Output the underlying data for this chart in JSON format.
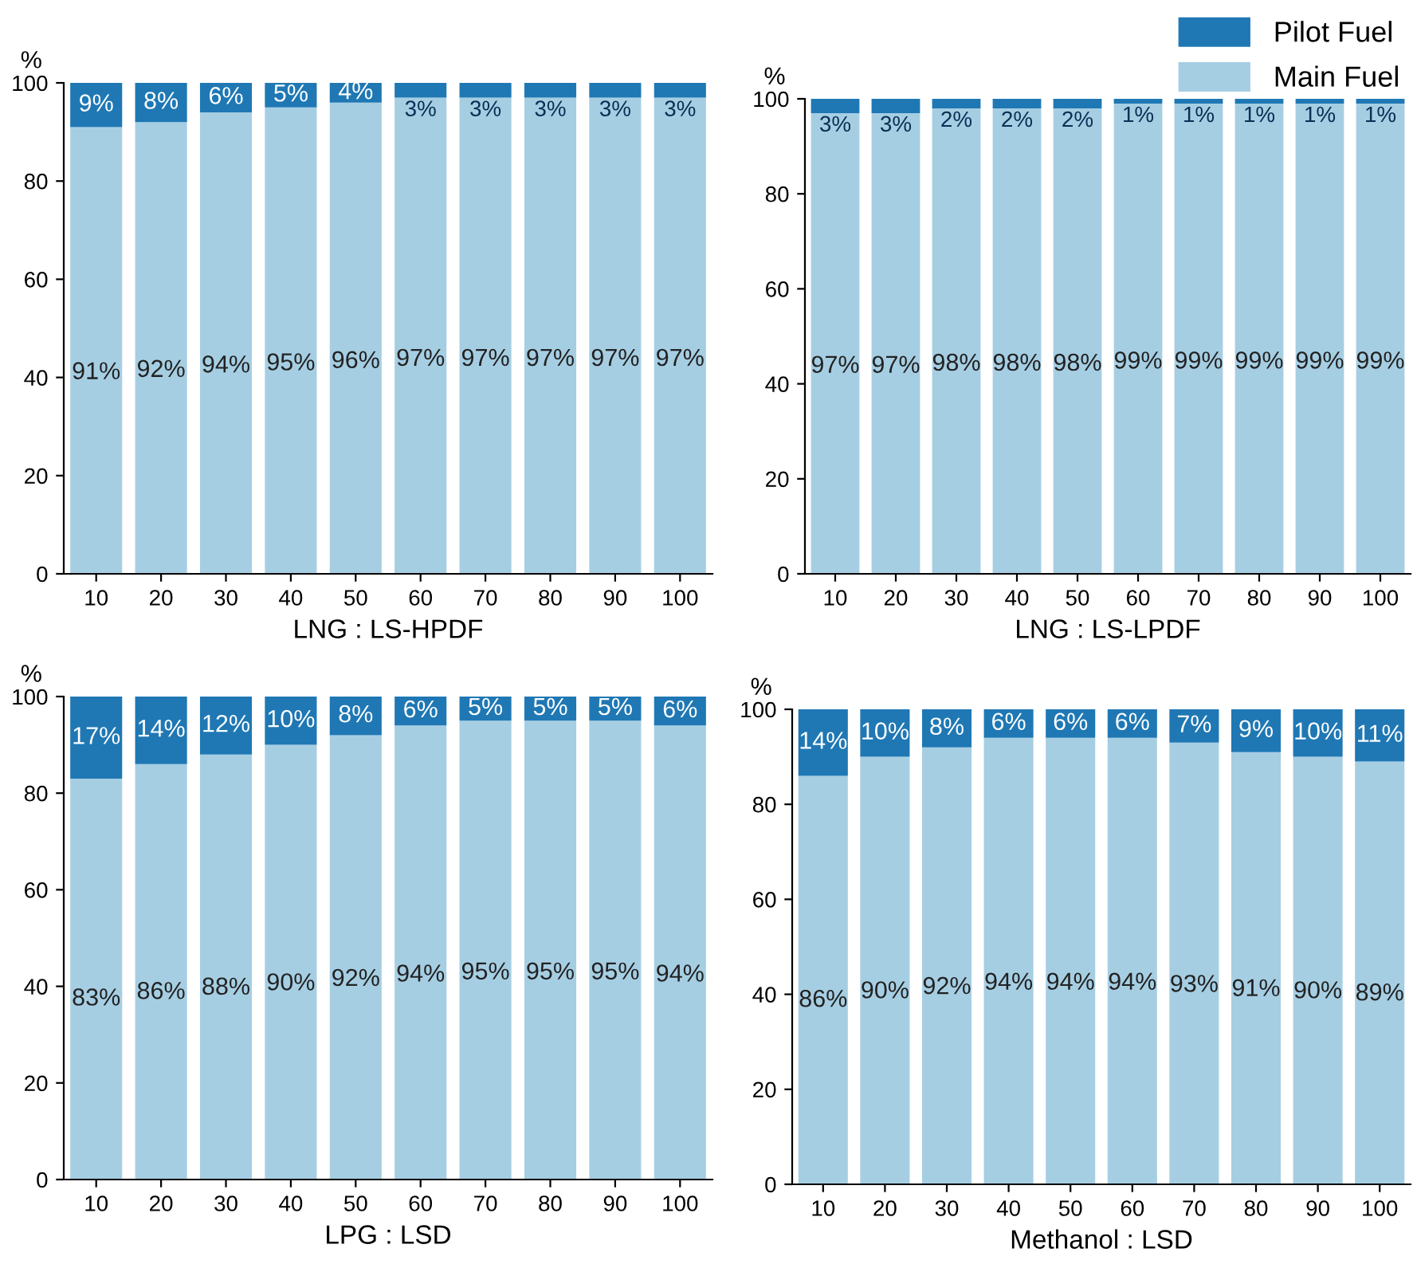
{
  "chart_data": [
    {
      "type": "bar",
      "stacked": true,
      "xlabel": "LNG : LS-HPDF",
      "ylabel": "%",
      "categories": [
        "10",
        "20",
        "30",
        "40",
        "50",
        "60",
        "70",
        "80",
        "90",
        "100"
      ],
      "ylim": [
        0,
        100
      ],
      "yticks": [
        0,
        20,
        40,
        60,
        80,
        100
      ],
      "grid": false,
      "legend": "top right",
      "series": [
        {
          "name": "Main Fuel",
          "color": "#a6cee3",
          "values": [
            91,
            92,
            94,
            95,
            96,
            97,
            97,
            97,
            97,
            97
          ],
          "value_labels": [
            "91%",
            "92%",
            "94%",
            "95%",
            "96%",
            "97%",
            "97%",
            "97%",
            "97%",
            "97%"
          ]
        },
        {
          "name": "Pilot Fuel",
          "color": "#1f78b4",
          "values": [
            9,
            8,
            6,
            5,
            4,
            3,
            3,
            3,
            3,
            3
          ],
          "value_labels": [
            "9%",
            "8%",
            "6%",
            "5%",
            "4%",
            "3%",
            "3%",
            "3%",
            "3%",
            "3%"
          ]
        }
      ]
    },
    {
      "type": "bar",
      "stacked": true,
      "xlabel": "LNG : LS-LPDF",
      "ylabel": "%",
      "categories": [
        "10",
        "20",
        "30",
        "40",
        "50",
        "60",
        "70",
        "80",
        "90",
        "100"
      ],
      "ylim": [
        0,
        100
      ],
      "yticks": [
        0,
        20,
        40,
        60,
        80,
        100
      ],
      "grid": false,
      "series": [
        {
          "color": "#a6cee3",
          "values": [
            97,
            97,
            98,
            98,
            98,
            99,
            99,
            99,
            99,
            99
          ],
          "value_labels": [
            "97%",
            "97%",
            "98%",
            "98%",
            "98%",
            "99%",
            "99%",
            "99%",
            "99%",
            "99%"
          ]
        },
        {
          "color": "#1f78b4",
          "values": [
            3,
            3,
            2,
            2,
            2,
            1,
            1,
            1,
            1,
            1
          ],
          "value_labels": [
            "3%",
            "3%",
            "2%",
            "2%",
            "2%",
            "1%",
            "1%",
            "1%",
            "1%",
            "1%"
          ]
        }
      ]
    },
    {
      "type": "bar",
      "stacked": true,
      "xlabel": "LPG : LSD",
      "ylabel": "%",
      "categories": [
        "10",
        "20",
        "30",
        "40",
        "50",
        "60",
        "70",
        "80",
        "90",
        "100"
      ],
      "ylim": [
        0,
        100
      ],
      "yticks": [
        0,
        20,
        40,
        60,
        80,
        100
      ],
      "grid": false,
      "series": [
        {
          "color": "#a6cee3",
          "values": [
            83,
            86,
            88,
            90,
            92,
            94,
            95,
            95,
            95,
            94
          ],
          "value_labels": [
            "83%",
            "86%",
            "88%",
            "90%",
            "92%",
            "94%",
            "95%",
            "95%",
            "95%",
            "94%"
          ]
        },
        {
          "color": "#1f78b4",
          "values": [
            17,
            14,
            12,
            10,
            8,
            6,
            5,
            5,
            5,
            6
          ],
          "value_labels": [
            "17%",
            "14%",
            "12%",
            "10%",
            "8%",
            "6%",
            "5%",
            "5%",
            "5%",
            "6%"
          ]
        }
      ]
    },
    {
      "type": "bar",
      "stacked": true,
      "xlabel": "Methanol : LSD",
      "ylabel": "%",
      "categories": [
        "10",
        "20",
        "30",
        "40",
        "50",
        "60",
        "70",
        "80",
        "90",
        "100"
      ],
      "ylim": [
        0,
        100
      ],
      "yticks": [
        0,
        20,
        40,
        60,
        80,
        100
      ],
      "grid": false,
      "series": [
        {
          "color": "#a6cee3",
          "values": [
            86,
            90,
            92,
            94,
            94,
            94,
            93,
            91,
            90,
            89
          ],
          "value_labels": [
            "86%",
            "90%",
            "92%",
            "94%",
            "94%",
            "94%",
            "93%",
            "91%",
            "90%",
            "89%"
          ]
        },
        {
          "color": "#1f78b4",
          "values": [
            14,
            10,
            8,
            6,
            6,
            6,
            7,
            9,
            10,
            11
          ],
          "value_labels": [
            "14%",
            "10%",
            "8%",
            "6%",
            "6%",
            "6%",
            "7%",
            "9%",
            "10%",
            "11%"
          ]
        }
      ]
    }
  ]
}
